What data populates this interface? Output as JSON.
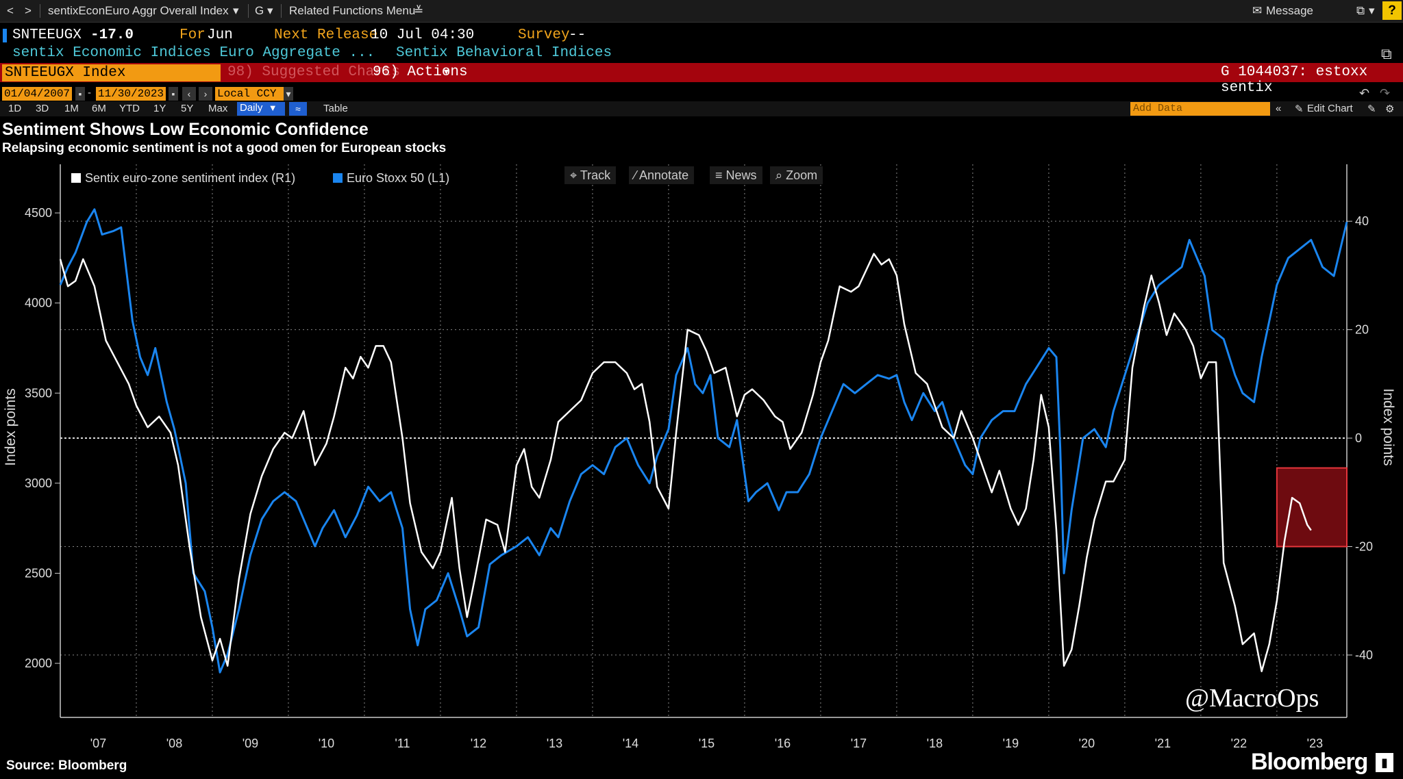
{
  "menubar": {
    "back": "<",
    "forward": ">",
    "security": "sentixEconEuro Aggr Overall Index",
    "g_menu": "G",
    "related": "Related Functions Menu",
    "message": "Message",
    "help": "?"
  },
  "quote": {
    "ticker": "SNTEEUGX",
    "value": "-17.0",
    "for_label": "For",
    "for_value": "Jun",
    "next_release_label": "Next Release",
    "next_release_value": "10 Jul 04:30",
    "survey_label": "Survey",
    "survey_value": "--",
    "desc_left": "sentix Economic Indices Euro Aggregate ...",
    "desc_right": "Sentix Behavioral Indices"
  },
  "redbar": {
    "index_name": "SNTEEUGX Index",
    "suggested": "98) Suggested Charts",
    "actions": "96) Actions",
    "chart_id": "G 1044037: estoxx sentix"
  },
  "datebar": {
    "start_date": "01/04/2007",
    "end_date": "11/30/2023",
    "currency": "Local CCY",
    "add_data": "Add Data",
    "edit_chart": "Edit Chart"
  },
  "rangebar": {
    "ranges": [
      "1D",
      "3D",
      "1M",
      "6M",
      "YTD",
      "1Y",
      "5Y",
      "Max"
    ],
    "frequency": "Daily",
    "table": "Table"
  },
  "chart_header": {
    "title": "Sentiment Shows Low Economic Confidence",
    "subtitle": "Relapsing economic sentiment is not a good omen for European stocks"
  },
  "tools": {
    "track": "Track",
    "annotate": "Annotate",
    "news": "News",
    "zoom": "Zoom"
  },
  "watermark": "@MacroOps",
  "source": "Source:  Bloomberg",
  "brand": "Bloomberg",
  "colors": {
    "sentix": "#ffffff",
    "stoxx": "#1a85ef",
    "highlight": "#e6363c"
  },
  "chart_data": {
    "type": "line",
    "x_tick_labels": [
      "'07",
      "'08",
      "'09",
      "'10",
      "'11",
      "'12",
      "'13",
      "'14",
      "'15",
      "'16",
      "'17",
      "'18",
      "'19",
      "'20",
      "'21",
      "'22",
      "'23"
    ],
    "xlim": [
      2007.0,
      2023.92
    ],
    "ylabel_left": "Index points",
    "ylabel_right": "Index points",
    "left_axis": {
      "ticks": [
        2000,
        2500,
        3000,
        3500,
        4000,
        4500
      ],
      "ylim": [
        1700,
        4770
      ]
    },
    "right_axis": {
      "ticks": [
        -40,
        -20,
        0,
        20,
        40
      ],
      "ylim": [
        -51.5,
        50.5
      ]
    },
    "zero_line": 0,
    "grid": true,
    "legend": "top-left",
    "series": [
      {
        "name": "Sentix euro-zone sentiment index (R1)",
        "axis": "right",
        "x": [
          2007.0,
          2007.1,
          2007.2,
          2007.3,
          2007.45,
          2007.6,
          2007.75,
          2007.9,
          2008.0,
          2008.15,
          2008.3,
          2008.45,
          2008.55,
          2008.7,
          2008.85,
          2009.0,
          2009.1,
          2009.2,
          2009.35,
          2009.5,
          2009.65,
          2009.8,
          2009.95,
          2010.05,
          2010.2,
          2010.35,
          2010.5,
          2010.6,
          2010.75,
          2010.85,
          2010.95,
          2011.05,
          2011.15,
          2011.25,
          2011.35,
          2011.5,
          2011.6,
          2011.75,
          2011.9,
          2012.0,
          2012.15,
          2012.25,
          2012.35,
          2012.45,
          2012.6,
          2012.75,
          2012.85,
          2013.0,
          2013.1,
          2013.2,
          2013.3,
          2013.45,
          2013.55,
          2013.7,
          2013.85,
          2014.0,
          2014.15,
          2014.3,
          2014.45,
          2014.55,
          2014.65,
          2014.75,
          2014.85,
          2015.0,
          2015.1,
          2015.25,
          2015.4,
          2015.5,
          2015.6,
          2015.75,
          2015.9,
          2016.0,
          2016.1,
          2016.25,
          2016.4,
          2016.5,
          2016.6,
          2016.75,
          2016.9,
          2017.0,
          2017.1,
          2017.25,
          2017.4,
          2017.5,
          2017.6,
          2017.7,
          2017.8,
          2017.9,
          2018.0,
          2018.1,
          2018.25,
          2018.4,
          2018.5,
          2018.6,
          2018.75,
          2018.85,
          2019.0,
          2019.1,
          2019.25,
          2019.35,
          2019.5,
          2019.6,
          2019.7,
          2019.8,
          2019.9,
          2020.0,
          2020.1,
          2020.2,
          2020.3,
          2020.4,
          2020.5,
          2020.6,
          2020.75,
          2020.85,
          2021.0,
          2021.1,
          2021.25,
          2021.35,
          2021.45,
          2021.55,
          2021.65,
          2021.8,
          2021.9,
          2022.0,
          2022.1,
          2022.2,
          2022.3,
          2022.45,
          2022.55,
          2022.7,
          2022.8,
          2022.9,
          2023.0,
          2023.1,
          2023.2,
          2023.3,
          2023.4,
          2023.45
        ],
        "values": [
          33,
          28,
          29,
          33,
          28,
          18,
          14,
          10,
          6,
          2,
          4,
          1,
          -5,
          -20,
          -33,
          -41,
          -37,
          -42,
          -26,
          -14,
          -7,
          -2,
          1,
          0,
          5,
          -5,
          -1,
          4,
          13,
          11,
          15,
          13,
          17,
          17,
          14,
          0,
          -12,
          -21,
          -24,
          -21,
          -11,
          -24,
          -33,
          -26,
          -15,
          -16,
          -21,
          -5,
          -2,
          -9,
          -11,
          -4,
          3,
          5,
          7,
          12,
          14,
          14,
          12,
          9,
          10,
          3,
          -9,
          -13,
          1,
          20,
          19,
          16,
          12,
          13,
          4,
          8,
          9,
          7,
          4,
          3,
          -2,
          1,
          8,
          14,
          18,
          28,
          27,
          28,
          31,
          34,
          32,
          33,
          30,
          21,
          12,
          10,
          6,
          2,
          0,
          5,
          0,
          -4,
          -10,
          -6,
          -13,
          -16,
          -13,
          -4,
          8,
          2,
          -17,
          -42,
          -39,
          -31,
          -22,
          -15,
          -8,
          -8,
          -4,
          13,
          24,
          30,
          25,
          19,
          23,
          20,
          17,
          11,
          14,
          14,
          -23,
          -31,
          -38,
          -36,
          -43,
          -38,
          -30,
          -19,
          -11,
          -12,
          -16,
          -17
        ]
      },
      {
        "name": "Euro Stoxx 50 (L1)",
        "axis": "left",
        "x": [
          2007.0,
          2007.1,
          2007.2,
          2007.35,
          2007.45,
          2007.55,
          2007.7,
          2007.8,
          2007.95,
          2008.05,
          2008.15,
          2008.25,
          2008.4,
          2008.5,
          2008.65,
          2008.75,
          2008.9,
          2009.0,
          2009.1,
          2009.2,
          2009.35,
          2009.5,
          2009.65,
          2009.8,
          2009.95,
          2010.1,
          2010.2,
          2010.35,
          2010.45,
          2010.6,
          2010.75,
          2010.9,
          2011.05,
          2011.2,
          2011.35,
          2011.5,
          2011.6,
          2011.7,
          2011.8,
          2011.95,
          2012.1,
          2012.25,
          2012.35,
          2012.5,
          2012.65,
          2012.8,
          2013.0,
          2013.15,
          2013.3,
          2013.45,
          2013.55,
          2013.7,
          2013.85,
          2014.0,
          2014.15,
          2014.3,
          2014.45,
          2014.6,
          2014.75,
          2014.85,
          2015.0,
          2015.1,
          2015.25,
          2015.35,
          2015.45,
          2015.55,
          2015.65,
          2015.8,
          2015.9,
          2016.05,
          2016.15,
          2016.3,
          2016.45,
          2016.55,
          2016.7,
          2016.85,
          2017.0,
          2017.15,
          2017.3,
          2017.45,
          2017.6,
          2017.75,
          2017.9,
          2018.0,
          2018.1,
          2018.2,
          2018.35,
          2018.5,
          2018.6,
          2018.75,
          2018.9,
          2019.0,
          2019.1,
          2019.25,
          2019.4,
          2019.55,
          2019.7,
          2019.85,
          2020.0,
          2020.1,
          2020.15,
          2020.2,
          2020.3,
          2020.45,
          2020.6,
          2020.75,
          2020.85,
          2021.0,
          2021.15,
          2021.3,
          2021.45,
          2021.6,
          2021.75,
          2021.85,
          2021.95,
          2022.05,
          2022.15,
          2022.3,
          2022.45,
          2022.55,
          2022.7,
          2022.8,
          2022.9,
          2023.0,
          2023.15,
          2023.3,
          2023.45,
          2023.6,
          2023.75,
          2023.92
        ],
        "values": [
          4100,
          4200,
          4280,
          4450,
          4520,
          4380,
          4400,
          4420,
          3900,
          3700,
          3600,
          3750,
          3450,
          3300,
          3000,
          2500,
          2400,
          2200,
          1950,
          2050,
          2300,
          2600,
          2800,
          2900,
          2950,
          2900,
          2800,
          2650,
          2750,
          2850,
          2700,
          2820,
          2980,
          2900,
          2950,
          2750,
          2300,
          2100,
          2300,
          2350,
          2500,
          2300,
          2150,
          2200,
          2550,
          2600,
          2650,
          2700,
          2600,
          2750,
          2700,
          2900,
          3050,
          3100,
          3050,
          3200,
          3250,
          3100,
          3000,
          3150,
          3300,
          3600,
          3750,
          3550,
          3500,
          3600,
          3250,
          3200,
          3350,
          2900,
          2950,
          3000,
          2850,
          2950,
          2950,
          3050,
          3250,
          3400,
          3550,
          3500,
          3550,
          3600,
          3580,
          3600,
          3450,
          3350,
          3500,
          3400,
          3450,
          3250,
          3100,
          3050,
          3250,
          3350,
          3400,
          3400,
          3550,
          3650,
          3750,
          3700,
          3200,
          2500,
          2850,
          3250,
          3300,
          3200,
          3400,
          3600,
          3800,
          4000,
          4100,
          4150,
          4200,
          4350,
          4250,
          4150,
          3850,
          3800,
          3600,
          3500,
          3450,
          3700,
          3900,
          4100,
          4250,
          4300,
          4350,
          4200,
          4150,
          4450
        ]
      }
    ],
    "highlight_box": {
      "x": [
        2023.0,
        2023.92
      ],
      "y_right": [
        -20,
        -5.5
      ]
    }
  }
}
